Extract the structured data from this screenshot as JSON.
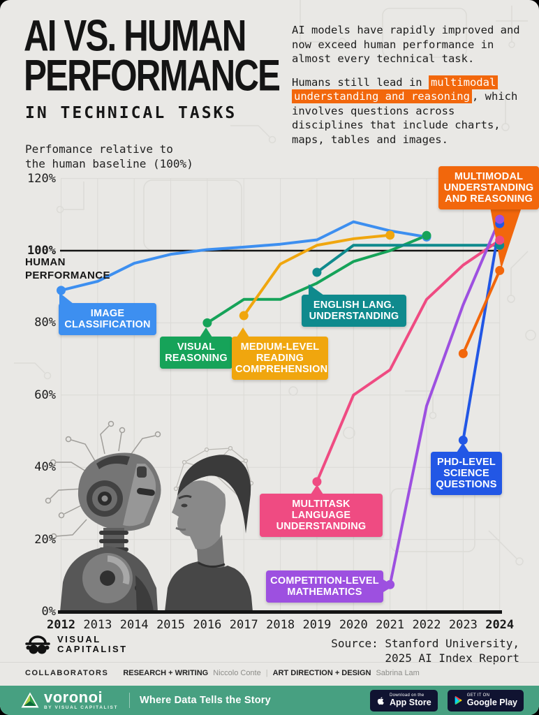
{
  "header": {
    "title_line1": "AI VS. HUMAN",
    "title_line2": "PERFORMANCE",
    "subtitle": "IN TECHNICAL TASKS",
    "intro_p1": "AI models have rapidly improved and now exceed human performance in almost every technical task.",
    "intro_p2_before": "Humans still lead in ",
    "intro_p2_highlight": "multimodal understanding and reasoning",
    "intro_p2_after": ", which involves questions across disciplines that include charts, maps, tables and images."
  },
  "chart": {
    "axis_note_line1": "Perfomance relative to",
    "axis_note_line2": "the human baseline (100%)",
    "baseline_line1": "HUMAN",
    "baseline_line2": "PERFORMANCE",
    "y_ticks": [
      "120%",
      "100%",
      "80%",
      "60%",
      "40%",
      "20%",
      "0%"
    ],
    "x_ticks": [
      "2012",
      "2013",
      "2014",
      "2015",
      "2016",
      "2017",
      "2018",
      "2019",
      "2020",
      "2021",
      "2022",
      "2023",
      "2024"
    ]
  },
  "chart_data": {
    "type": "line",
    "title": "AI vs. Human Performance in Technical Tasks",
    "ylabel": "Performance relative to the human baseline (100%)",
    "ylim": [
      0,
      120
    ],
    "x_range": [
      2012,
      2024
    ],
    "grid": true,
    "baseline": {
      "value": 100,
      "label": "100% Human performance"
    },
    "series": [
      {
        "name": "Image Classification",
        "color": "#3d8ff0",
        "points": [
          [
            2012,
            89
          ],
          [
            2013,
            91.5
          ],
          [
            2014,
            96.5
          ],
          [
            2015,
            99
          ],
          [
            2016,
            100.3
          ],
          [
            2017,
            101
          ],
          [
            2018,
            101.8
          ],
          [
            2019,
            103
          ],
          [
            2020,
            108
          ],
          [
            2021,
            105.5
          ],
          [
            2022,
            103.8
          ]
        ]
      },
      {
        "name": "Visual Reasoning",
        "color": "#16a359",
        "points": [
          [
            2016,
            80
          ],
          [
            2017,
            86.5
          ],
          [
            2018,
            86.5
          ],
          [
            2019,
            91
          ],
          [
            2020,
            97
          ],
          [
            2021,
            100
          ],
          [
            2022,
            104.2
          ]
        ]
      },
      {
        "name": "Medium-Level Reading Comprehension",
        "color": "#f0a60e",
        "points": [
          [
            2017,
            82
          ],
          [
            2018,
            96.3
          ],
          [
            2019,
            101.5
          ],
          [
            2020,
            103.3
          ],
          [
            2021,
            104.3
          ]
        ]
      },
      {
        "name": "English Lang. Understanding",
        "color": "#0f8a8d",
        "points": [
          [
            2019,
            94
          ],
          [
            2020,
            101.5
          ],
          [
            2024,
            101.5
          ]
        ]
      },
      {
        "name": "Multitask Language Understanding",
        "color": "#ef4b82",
        "points": [
          [
            2019,
            36
          ],
          [
            2020,
            60
          ],
          [
            2021,
            67
          ],
          [
            2022,
            86.5
          ],
          [
            2023,
            96
          ],
          [
            2024,
            102.9
          ]
        ]
      },
      {
        "name": "PhD-Level Science Questions",
        "color": "#2257e5",
        "points": [
          [
            2023,
            47.5
          ],
          [
            2024,
            107.5
          ]
        ]
      },
      {
        "name": "Competition-Level Mathematics",
        "color": "#9d50e0",
        "points": [
          [
            2021,
            7.5
          ],
          [
            2022,
            57
          ],
          [
            2023,
            85
          ],
          [
            2024,
            108.7
          ]
        ]
      },
      {
        "name": "Multimodal Understanding and Reasoning",
        "color": "#f2670c",
        "points": [
          [
            2023,
            71.5
          ],
          [
            2024,
            94.5
          ]
        ]
      }
    ]
  },
  "callouts": [
    {
      "id": "image",
      "color": "#3d8ff0",
      "lines": [
        "IMAGE",
        "CLASSIFICATION"
      ]
    },
    {
      "id": "visual",
      "color": "#16a359",
      "lines": [
        "VISUAL",
        "REASONING"
      ]
    },
    {
      "id": "reading",
      "color": "#f0a60e",
      "lines": [
        "MEDIUM-LEVEL",
        "READING",
        "COMPREHENSION"
      ]
    },
    {
      "id": "english",
      "color": "#0f8a8d",
      "lines": [
        "ENGLISH LANG.",
        "UNDERSTANDING"
      ]
    },
    {
      "id": "multitask",
      "color": "#ef4b82",
      "lines": [
        "MULTITASK LANGUAGE",
        "UNDERSTANDING"
      ]
    },
    {
      "id": "math",
      "color": "#9d50e0",
      "lines": [
        "COMPETITION-LEVEL",
        "MATHEMATICS"
      ]
    },
    {
      "id": "phd",
      "color": "#2257e5",
      "lines": [
        "PHD-LEVEL",
        "SCIENCE",
        "QUESTIONS"
      ]
    },
    {
      "id": "multimodal",
      "color": "#f2670c",
      "lines": [
        "MULTIMODAL",
        "UNDERSTANDING",
        "AND REASONING"
      ]
    }
  ],
  "colors": {
    "orange_accent": "#f2670c",
    "background": "#e9e8e5",
    "bottom_bar": "#47a081",
    "baseline_black": "#141414"
  },
  "footer": {
    "brand_line1": "VISUAL",
    "brand_line2": "CAPITALIST",
    "collaborators_label": "COLLABORATORS",
    "research_label": "RESEARCH + WRITING",
    "research_name": "Niccolo Conte",
    "divider": "|",
    "art_label": "ART DIRECTION + DESIGN",
    "art_name": "Sabrina Lam",
    "source_line1": "Source: Stanford University,",
    "source_line2": "2025 AI Index Report"
  },
  "bottom_bar": {
    "brand": "voronoi",
    "brand_sub": "BY VISUAL CAPITALIST",
    "tagline": "Where Data Tells the Story",
    "appstore_top": "Download on the",
    "appstore_name": "App Store",
    "gplay_top": "GET IT ON",
    "gplay_name": "Google Play"
  }
}
